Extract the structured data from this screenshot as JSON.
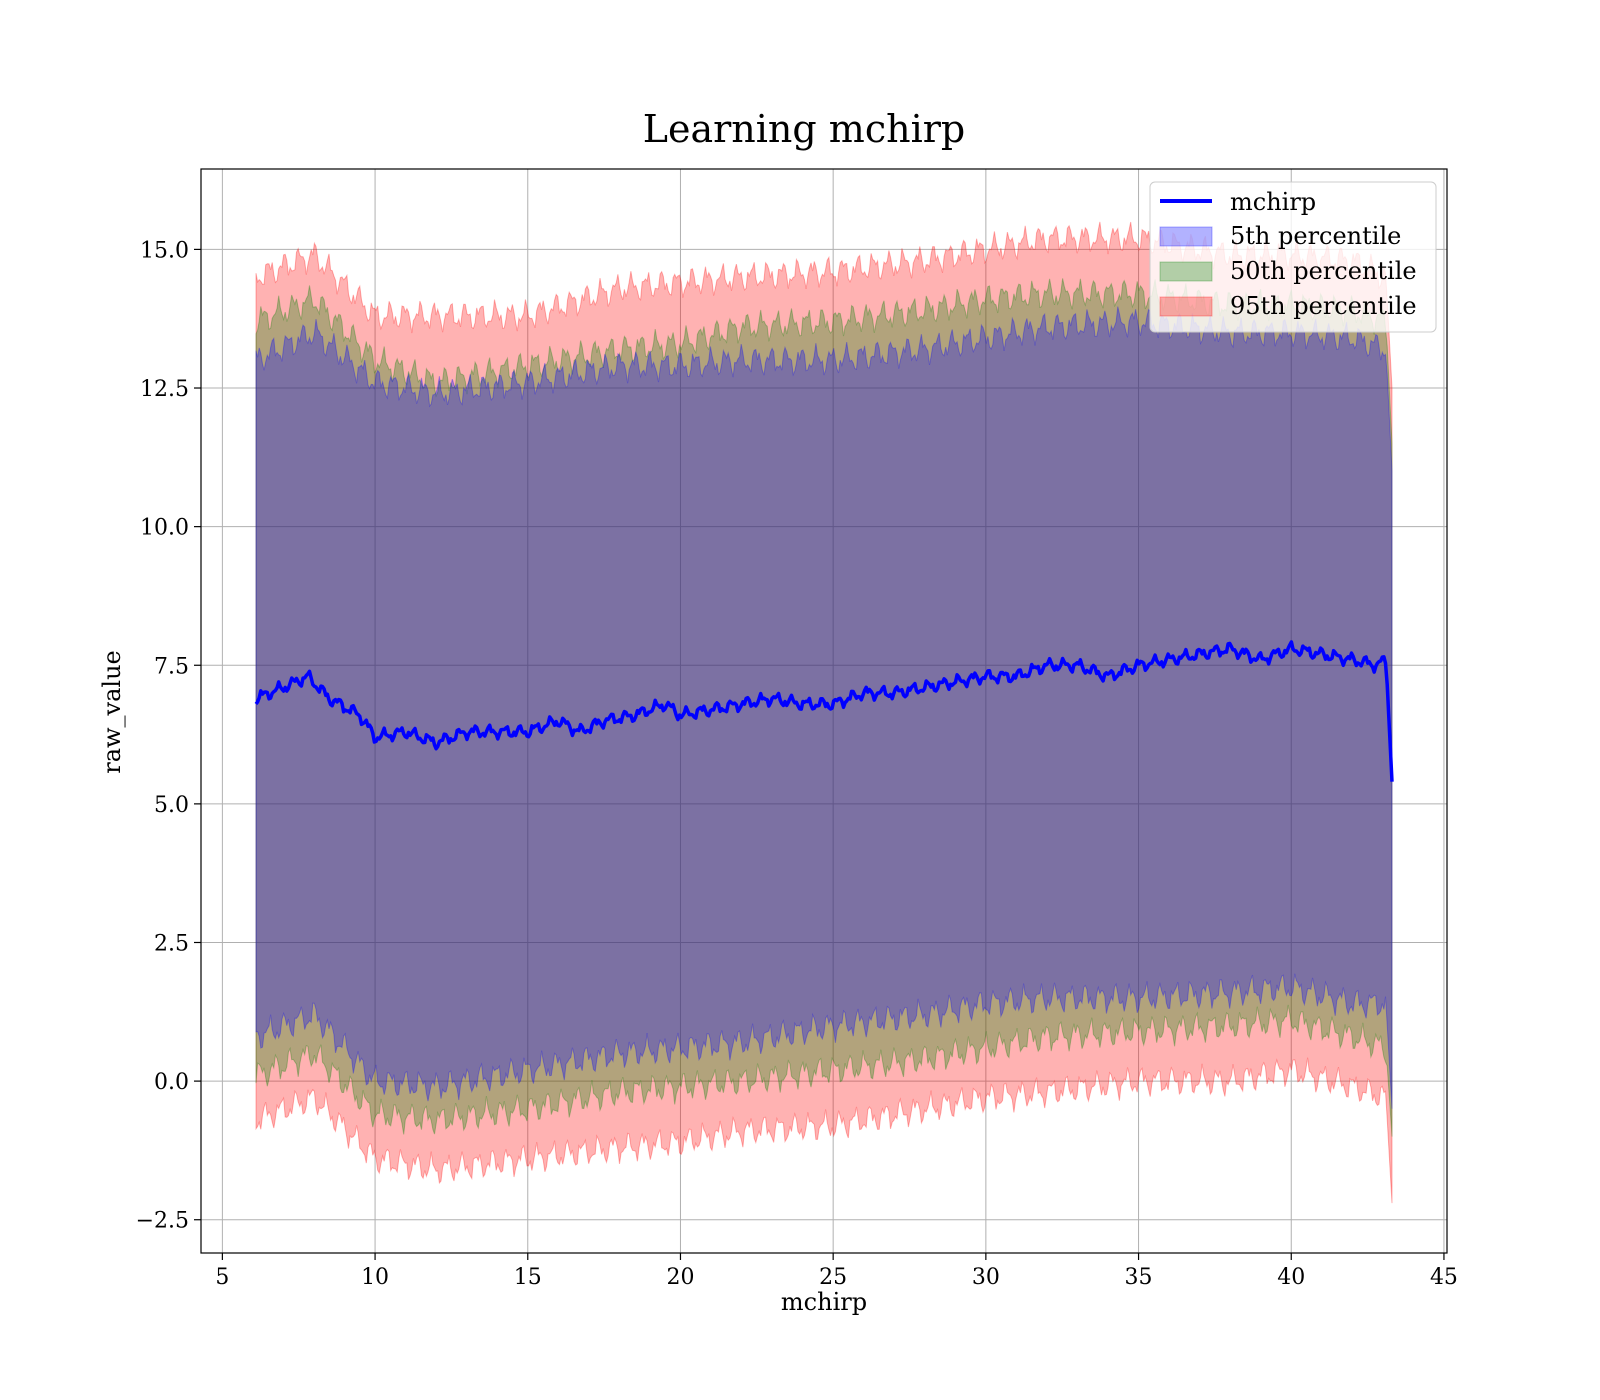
{
  "chart_data": {
    "type": "area",
    "title": "Learning mchirp",
    "xlabel": "mchirp",
    "ylabel": "raw_value",
    "xlim": [
      4.3,
      45.1
    ],
    "ylim": [
      -3.1,
      16.45
    ],
    "xticks": [
      5,
      10,
      15,
      20,
      25,
      30,
      35,
      40,
      45
    ],
    "xtick_labels": [
      "5",
      "10",
      "15",
      "20",
      "25",
      "30",
      "35",
      "40",
      "45"
    ],
    "yticks": [
      -2.5,
      0.0,
      2.5,
      5.0,
      7.5,
      10.0,
      12.5,
      15.0
    ],
    "ytick_labels": [
      "−2.5",
      "0.0",
      "2.5",
      "5.0",
      "7.5",
      "10.0",
      "12.5",
      "15.0"
    ],
    "grid": true,
    "legend_position": "top-right",
    "series": [
      {
        "name": "mchirp",
        "kind": "line",
        "color": "#0000ff",
        "x": [
          6.1,
          7.0,
          7.8,
          8.5,
          9.5,
          10.0,
          11.0,
          12.0,
          13.0,
          14.0,
          15.0,
          16.0,
          16.7,
          17.5,
          18.5,
          19.5,
          20.0,
          21.0,
          22.0,
          23.0,
          24.0,
          25.0,
          26.0,
          27.0,
          28.0,
          29.0,
          30.0,
          31.0,
          32.0,
          33.0,
          34.0,
          35.0,
          36.0,
          37.0,
          38.0,
          39.0,
          40.0,
          41.0,
          42.0,
          42.8,
          43.1,
          43.3
        ],
        "y": [
          6.9,
          7.1,
          7.3,
          6.9,
          6.6,
          6.2,
          6.3,
          6.1,
          6.3,
          6.3,
          6.3,
          6.5,
          6.3,
          6.5,
          6.6,
          6.8,
          6.6,
          6.7,
          6.8,
          6.9,
          6.8,
          6.8,
          7.0,
          7.0,
          7.1,
          7.2,
          7.3,
          7.3,
          7.5,
          7.5,
          7.3,
          7.5,
          7.6,
          7.7,
          7.8,
          7.6,
          7.8,
          7.7,
          7.6,
          7.5,
          7.6,
          5.4
        ]
      },
      {
        "name": "5th percentile",
        "kind": "band",
        "color": "#0000ff",
        "x": [
          6.1,
          8.0,
          10.0,
          12.0,
          15.0,
          18.0,
          20.0,
          22.0,
          25.0,
          28.0,
          30.0,
          32.0,
          35.0,
          38.0,
          40.0,
          42.0,
          43.1,
          43.3
        ],
        "lower": [
          0.8,
          1.2,
          0.0,
          -0.1,
          0.2,
          0.5,
          0.6,
          0.7,
          1.0,
          1.2,
          1.4,
          1.5,
          1.5,
          1.6,
          1.7,
          1.4,
          1.4,
          -0.5
        ],
        "upper": [
          13.0,
          13.5,
          12.6,
          12.4,
          12.6,
          12.9,
          12.9,
          13.0,
          13.0,
          13.2,
          13.4,
          13.6,
          13.7,
          13.5,
          13.5,
          13.4,
          13.2,
          11.0
        ]
      },
      {
        "name": "50th percentile",
        "kind": "band",
        "color": "#008000",
        "x": [
          6.1,
          8.0,
          10.0,
          12.0,
          15.0,
          18.0,
          20.0,
          22.0,
          25.0,
          28.0,
          30.0,
          32.0,
          35.0,
          38.0,
          40.0,
          42.0,
          43.1,
          43.3
        ],
        "lower": [
          0.1,
          0.5,
          -0.6,
          -0.7,
          -0.5,
          -0.2,
          -0.1,
          0.0,
          0.2,
          0.4,
          0.6,
          0.8,
          0.9,
          1.0,
          1.1,
          0.8,
          0.6,
          -1.0
        ],
        "upper": [
          13.7,
          14.1,
          13.0,
          12.6,
          12.9,
          13.2,
          13.3,
          13.6,
          13.7,
          13.9,
          14.1,
          14.2,
          14.2,
          14.0,
          14.0,
          13.9,
          13.7,
          11.5
        ]
      },
      {
        "name": "95th percentile",
        "kind": "band",
        "color": "#ff0000",
        "x": [
          6.1,
          8.0,
          10.0,
          12.0,
          15.0,
          18.0,
          20.0,
          22.0,
          25.0,
          28.0,
          30.0,
          32.0,
          35.0,
          38.0,
          40.0,
          42.0,
          43.1,
          43.3
        ],
        "lower": [
          -0.7,
          -0.3,
          -1.4,
          -1.6,
          -1.4,
          -1.2,
          -1.1,
          -0.9,
          -0.8,
          -0.5,
          -0.3,
          -0.2,
          0.0,
          0.0,
          0.2,
          -0.1,
          -0.3,
          -2.2
        ],
        "upper": [
          14.5,
          14.9,
          13.8,
          13.8,
          13.8,
          14.3,
          14.4,
          14.5,
          14.6,
          14.8,
          15.0,
          15.2,
          15.2,
          14.9,
          14.9,
          14.8,
          14.5,
          12.5
        ]
      }
    ]
  }
}
